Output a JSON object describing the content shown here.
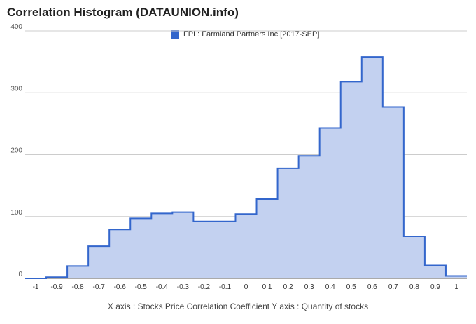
{
  "chart_data": {
    "type": "area",
    "title": "Correlation Histogram (DATAUNION.info)",
    "legend": {
      "label": "FPI : Farmland Partners Inc.[2017-SEP]",
      "position": "top-center"
    },
    "caption": "X axis : Stocks Price Correlation Coefficient  Y axis : Quantity of stocks",
    "x_ticks": [
      "-1",
      "-0.9",
      "-0.8",
      "-0.7",
      "-0.6",
      "-0.5",
      "-0.4",
      "-0.3",
      "-0.2",
      "-0.1",
      "0",
      "0.1",
      "0.2",
      "0.3",
      "0.4",
      "0.5",
      "0.6",
      "0.7",
      "0.8",
      "0.9",
      "1"
    ],
    "y_ticks": [
      "0",
      "100",
      "200",
      "300",
      "400"
    ],
    "xlim": [
      -1.05,
      1.05
    ],
    "ylim": [
      0,
      400
    ],
    "grid": true,
    "series": [
      {
        "name": "FPI : Farmland Partners Inc.[2017-SEP]",
        "color": "#3366cc",
        "fill": "#c3d1f0",
        "x": [
          -1.0,
          -0.9,
          -0.8,
          -0.7,
          -0.6,
          -0.5,
          -0.4,
          -0.3,
          -0.2,
          -0.1,
          0.0,
          0.1,
          0.2,
          0.3,
          0.4,
          0.5,
          0.6,
          0.7,
          0.8,
          0.9,
          1.0
        ],
        "values": [
          0,
          2,
          20,
          52,
          79,
          97,
          105,
          107,
          92,
          92,
          104,
          128,
          178,
          198,
          243,
          318,
          358,
          277,
          68,
          21,
          4
        ]
      }
    ]
  }
}
